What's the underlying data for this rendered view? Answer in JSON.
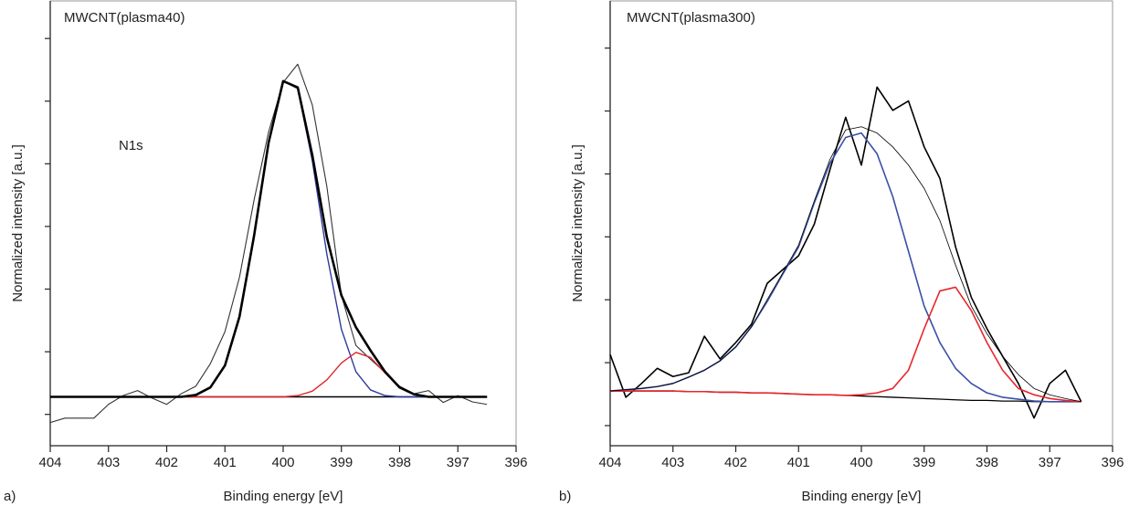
{
  "chart_data": [
    {
      "type": "line",
      "title": "MWCNT(plasma40)",
      "annotations": [
        "N1s"
      ],
      "panel_label": "a)",
      "xlabel": "Binding energy [eV]",
      "ylabel": "Normalized intensity [a.u.]",
      "xlim": [
        404,
        396
      ],
      "xticks": [
        404,
        403,
        402,
        401,
        400,
        399,
        398,
        397,
        396
      ],
      "ylim": [
        -0.5,
        6.6
      ],
      "yticks": [
        0,
        1,
        2,
        3,
        4,
        5,
        6
      ],
      "x": [
        404,
        403.75,
        403.5,
        403.25,
        403,
        402.75,
        402.5,
        402.25,
        402,
        401.75,
        401.5,
        401.25,
        401,
        400.75,
        400.5,
        400.25,
        400,
        399.75,
        399.5,
        399.25,
        399,
        398.75,
        398.5,
        398.25,
        398,
        397.75,
        397.5,
        397.25,
        397,
        396.75,
        396.5
      ],
      "series": [
        {
          "color": "#333333",
          "values": [
            -0.13,
            -0.06,
            -0.06,
            -0.06,
            0.16,
            0.3,
            0.38,
            0.26,
            0.16,
            0.33,
            0.45,
            0.81,
            1.32,
            2.19,
            3.42,
            4.51,
            5.3,
            5.59,
            4.94,
            3.64,
            1.9,
            1.1,
            0.88,
            0.67,
            0.45,
            0.33,
            0.38,
            0.19,
            0.3,
            0.2,
            0.16
          ]
        },
        {
          "color": "#000000",
          "values": [
            0.28,
            0.28,
            0.28,
            0.28,
            0.28,
            0.28,
            0.28,
            0.28,
            0.28,
            0.28,
            0.31,
            0.43,
            0.78,
            1.56,
            2.85,
            4.34,
            5.32,
            5.22,
            4.14,
            2.83,
            1.9,
            1.39,
            1.02,
            0.68,
            0.43,
            0.32,
            0.28,
            0.28,
            0.28,
            0.28,
            0.28
          ]
        },
        {
          "color": "#2e3a9a",
          "values": [
            0.28,
            0.28,
            0.28,
            0.28,
            0.28,
            0.28,
            0.28,
            0.28,
            0.28,
            0.28,
            0.31,
            0.43,
            0.78,
            1.56,
            2.85,
            4.34,
            5.32,
            5.2,
            4.05,
            2.56,
            1.36,
            0.68,
            0.39,
            0.3,
            0.28,
            0.28,
            0.28,
            0.28,
            0.28,
            0.28,
            0.28
          ]
        },
        {
          "color": "#e0262a",
          "values": [
            0.28,
            0.28,
            0.28,
            0.28,
            0.28,
            0.28,
            0.28,
            0.28,
            0.28,
            0.28,
            0.28,
            0.28,
            0.28,
            0.28,
            0.28,
            0.28,
            0.28,
            0.3,
            0.37,
            0.55,
            0.82,
            0.99,
            0.91,
            0.66,
            0.43,
            0.32,
            0.28,
            0.28,
            0.28,
            0.28,
            0.28
          ]
        },
        {
          "color": "#000000",
          "values": [
            0.28,
            0.28,
            0.28,
            0.28,
            0.28,
            0.28,
            0.28,
            0.28,
            0.28,
            0.28,
            0.28,
            0.28,
            0.28,
            0.28,
            0.28,
            0.28,
            0.28,
            0.28,
            0.28,
            0.28,
            0.28,
            0.28,
            0.28,
            0.28,
            0.28,
            0.28,
            0.28,
            0.28,
            0.28,
            0.28,
            0.28
          ]
        }
      ]
    },
    {
      "type": "line",
      "title": "MWCNT(plasma300)",
      "panel_label": "b)",
      "xlabel": "Binding energy [eV]",
      "ylabel": "Normalized intensity [a.u.]",
      "xlim": [
        404,
        396
      ],
      "xticks": [
        404,
        403,
        402,
        401,
        400,
        399,
        398,
        397,
        396
      ],
      "ylim": [
        -0.32,
        6.75
      ],
      "yticks": [
        0,
        1,
        2,
        3,
        4,
        5,
        6
      ],
      "x": [
        404,
        403.75,
        403.5,
        403.25,
        403,
        402.75,
        402.5,
        402.25,
        402,
        401.75,
        401.5,
        401.25,
        401,
        400.75,
        400.5,
        400.25,
        400,
        399.75,
        399.5,
        399.25,
        399,
        398.75,
        398.5,
        398.25,
        398,
        397.75,
        397.5,
        397.25,
        397,
        396.75,
        396.5
      ],
      "series": [
        {
          "color": "#000000",
          "values": [
            1.13,
            0.45,
            0.67,
            0.91,
            0.78,
            0.84,
            1.42,
            1.06,
            1.32,
            1.61,
            2.26,
            2.48,
            2.7,
            3.2,
            4.07,
            4.9,
            4.14,
            5.38,
            5.01,
            5.16,
            4.43,
            3.93,
            2.84,
            2.04,
            1.54,
            1.1,
            0.67,
            0.12,
            0.67,
            0.88,
            0.38
          ]
        },
        {
          "color": "#000000",
          "values": [
            0.55,
            0.57,
            0.59,
            0.62,
            0.67,
            0.77,
            0.88,
            1.03,
            1.25,
            1.57,
            2.0,
            2.43,
            2.87,
            3.57,
            4.23,
            4.7,
            4.75,
            4.65,
            4.43,
            4.14,
            3.77,
            3.26,
            2.55,
            1.9,
            1.46,
            1.1,
            0.81,
            0.59,
            0.49,
            0.43,
            0.38
          ]
        },
        {
          "color": "#3a4fa6",
          "values": [
            0.55,
            0.57,
            0.59,
            0.62,
            0.67,
            0.77,
            0.88,
            1.03,
            1.25,
            1.57,
            1.97,
            2.41,
            2.84,
            3.54,
            4.17,
            4.58,
            4.65,
            4.32,
            3.64,
            2.77,
            1.9,
            1.32,
            0.91,
            0.67,
            0.52,
            0.45,
            0.42,
            0.39,
            0.38,
            0.38,
            0.38
          ]
        },
        {
          "color": "#e8262b",
          "values": [
            0.55,
            0.55,
            0.55,
            0.55,
            0.55,
            0.54,
            0.54,
            0.53,
            0.53,
            0.52,
            0.52,
            0.51,
            0.5,
            0.49,
            0.49,
            0.48,
            0.49,
            0.52,
            0.59,
            0.88,
            1.54,
            2.14,
            2.2,
            1.83,
            1.32,
            0.88,
            0.59,
            0.49,
            0.43,
            0.4,
            0.38
          ]
        },
        {
          "color": "#000000",
          "values": [
            0.55,
            0.55,
            0.55,
            0.55,
            0.55,
            0.54,
            0.54,
            0.53,
            0.53,
            0.52,
            0.52,
            0.51,
            0.5,
            0.49,
            0.49,
            0.48,
            0.47,
            0.46,
            0.45,
            0.44,
            0.43,
            0.42,
            0.41,
            0.4,
            0.4,
            0.39,
            0.39,
            0.38,
            0.38,
            0.38,
            0.38
          ]
        }
      ]
    }
  ]
}
